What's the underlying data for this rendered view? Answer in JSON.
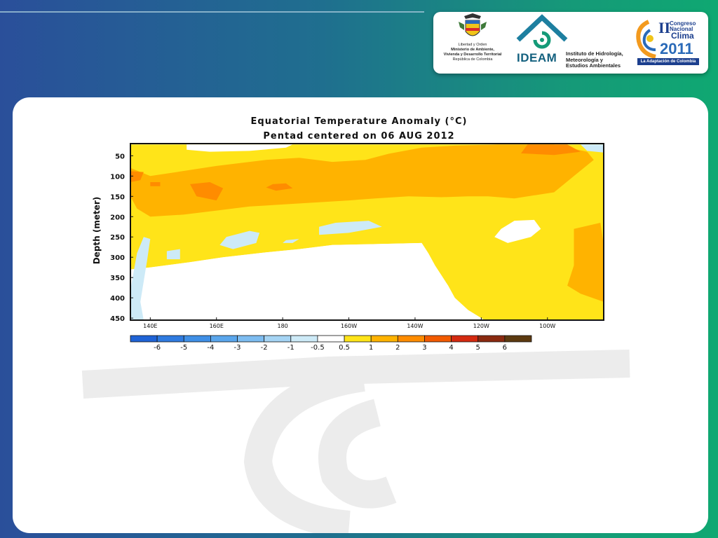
{
  "header": {
    "ministerio": {
      "lines": [
        "Libertad y Orden",
        "Ministerio de Ambiente,",
        "Vivienda y Desarrollo Territorial",
        "República de Colombia"
      ],
      "icon": "colombia-coat-of-arms-icon"
    },
    "ideam": {
      "name": "IDEAM",
      "subtitle_lines": [
        "Instituto de Hidrología,",
        "Meteorología y",
        "Estudios Ambientales"
      ],
      "icon": "ideam-house-icon"
    },
    "congreso": {
      "line1": "II",
      "line2": "Congreso",
      "line3": "Nacional",
      "line4": "Clima",
      "year": "2011",
      "tagline": "La Adaptación de Colombia"
    }
  },
  "chart_data": {
    "type": "heatmap",
    "title": "Equatorial Temperature Anomaly (°C)",
    "subtitle": "Pentad centered on 06 AUG 2012",
    "ylabel": "Depth (meter)",
    "xlabel": "",
    "x_ticks": [
      {
        "label": "140E",
        "lon": 140
      },
      {
        "label": "160E",
        "lon": 160
      },
      {
        "label": "180",
        "lon": 180
      },
      {
        "label": "160W",
        "lon": 200
      },
      {
        "label": "140W",
        "lon": 220
      },
      {
        "label": "120W",
        "lon": 240
      },
      {
        "label": "100W",
        "lon": 260
      }
    ],
    "xlim": [
      134,
      277
    ],
    "y_ticks": [
      50,
      100,
      150,
      200,
      250,
      300,
      350,
      400,
      450
    ],
    "ylim": [
      20,
      455
    ],
    "y_inverted": true,
    "colorbar": {
      "labels": [
        "-6",
        "-5",
        "-4",
        "-3",
        "-2",
        "-1",
        "-0.5",
        "0.5",
        "1",
        "2",
        "3",
        "4",
        "5",
        "6"
      ],
      "colors": [
        "#1f63d6",
        "#2f7be0",
        "#3f8fe6",
        "#5aa6ec",
        "#7dbcf0",
        "#a5d4f4",
        "#cdeaf7",
        "#ffffff",
        "#ffe419",
        "#ffb300",
        "#ff8c00",
        "#f25a00",
        "#d42a10",
        "#8a2a10",
        "#5c3a10"
      ]
    },
    "regions": [
      {
        "level": "1",
        "color": "#ffe419",
        "points": [
          [
            134,
            22
          ],
          [
            277,
            22
          ],
          [
            277,
            455
          ],
          [
            241,
            455
          ],
          [
            236,
            430
          ],
          [
            232,
            400
          ],
          [
            230,
            370
          ],
          [
            228,
            345
          ],
          [
            226,
            320
          ],
          [
            224,
            290
          ],
          [
            222,
            265
          ],
          [
            205,
            268
          ],
          [
            195,
            270
          ],
          [
            185,
            280
          ],
          [
            175,
            288
          ],
          [
            162,
            300
          ],
          [
            152,
            312
          ],
          [
            140,
            325
          ],
          [
            134,
            330
          ]
        ]
      },
      {
        "level": "2",
        "color": "#ffb300",
        "points": [
          [
            134,
            80
          ],
          [
            140,
            100
          ],
          [
            148,
            90
          ],
          [
            160,
            75
          ],
          [
            175,
            60
          ],
          [
            185,
            55
          ],
          [
            195,
            65
          ],
          [
            205,
            60
          ],
          [
            212,
            45
          ],
          [
            222,
            30
          ],
          [
            232,
            25
          ],
          [
            245,
            22
          ],
          [
            262,
            22
          ],
          [
            272,
            40
          ],
          [
            274,
            60
          ],
          [
            268,
            100
          ],
          [
            262,
            140
          ],
          [
            250,
            155
          ],
          [
            242,
            150
          ],
          [
            236,
            150
          ],
          [
            228,
            152
          ],
          [
            218,
            150
          ],
          [
            208,
            155
          ],
          [
            200,
            160
          ],
          [
            190,
            165
          ],
          [
            180,
            170
          ],
          [
            170,
            175
          ],
          [
            160,
            185
          ],
          [
            150,
            195
          ],
          [
            140,
            200
          ],
          [
            136,
            180
          ],
          [
            134,
            150
          ]
        ]
      },
      {
        "level": "2",
        "color": "#ffb300",
        "points": [
          [
            268,
            230
          ],
          [
            276,
            215
          ],
          [
            277,
            270
          ],
          [
            277,
            410
          ],
          [
            270,
            390
          ],
          [
            266,
            370
          ],
          [
            268,
            320
          ]
        ]
      },
      {
        "level": "3",
        "color": "#ff8c00",
        "points": [
          [
            254,
            22
          ],
          [
            266,
            22
          ],
          [
            270,
            40
          ],
          [
            262,
            48
          ],
          [
            252,
            44
          ]
        ]
      },
      {
        "level": "3",
        "color": "#ff8c00",
        "points": [
          [
            152,
            120
          ],
          [
            158,
            115
          ],
          [
            162,
            130
          ],
          [
            160,
            160
          ],
          [
            154,
            150
          ]
        ]
      },
      {
        "level": "3",
        "color": "#ff8c00",
        "points": [
          [
            177,
            120
          ],
          [
            181,
            118
          ],
          [
            183,
            130
          ],
          [
            178,
            136
          ],
          [
            175,
            128
          ]
        ]
      },
      {
        "level": "3",
        "color": "#ff8c00",
        "points": [
          [
            134,
            88
          ],
          [
            138,
            90
          ],
          [
            137,
            110
          ],
          [
            134,
            115
          ]
        ]
      },
      {
        "level": "3",
        "color": "#ff8c00",
        "points": [
          [
            140,
            115
          ],
          [
            143,
            115
          ],
          [
            143,
            125
          ],
          [
            140,
            125
          ]
        ]
      },
      {
        "level": "0",
        "color": "#ffffff",
        "points": [
          [
            151,
            22
          ],
          [
            183,
            22
          ],
          [
            181,
            30
          ],
          [
            170,
            38
          ],
          [
            158,
            40
          ],
          [
            151,
            35
          ]
        ]
      },
      {
        "level": "0",
        "color": "#ffffff",
        "points": [
          [
            134,
            330
          ],
          [
            140,
            325
          ],
          [
            152,
            312
          ],
          [
            162,
            300
          ],
          [
            175,
            288
          ],
          [
            185,
            280
          ],
          [
            195,
            270
          ],
          [
            205,
            268
          ],
          [
            222,
            265
          ],
          [
            224,
            290
          ],
          [
            226,
            320
          ],
          [
            228,
            345
          ],
          [
            230,
            370
          ],
          [
            232,
            400
          ],
          [
            236,
            430
          ],
          [
            241,
            455
          ],
          [
            134,
            455
          ]
        ]
      },
      {
        "level": "0",
        "color": "#ffffff",
        "points": [
          [
            246,
            230
          ],
          [
            250,
            210
          ],
          [
            256,
            208
          ],
          [
            258,
            230
          ],
          [
            255,
            250
          ],
          [
            248,
            265
          ],
          [
            244,
            250
          ]
        ]
      },
      {
        "level": "-0.5",
        "color": "#cdeaf7",
        "points": [
          [
            136,
            290
          ],
          [
            138,
            250
          ],
          [
            140,
            255
          ],
          [
            139,
            310
          ],
          [
            138,
            360
          ],
          [
            137,
            410
          ],
          [
            138,
            455
          ],
          [
            134,
            455
          ],
          [
            134,
            380
          ]
        ]
      },
      {
        "level": "-0.5",
        "color": "#cdeaf7",
        "points": [
          [
            163,
            250
          ],
          [
            170,
            235
          ],
          [
            173,
            240
          ],
          [
            172,
            265
          ],
          [
            165,
            280
          ],
          [
            161,
            270
          ]
        ]
      },
      {
        "level": "-0.5",
        "color": "#cdeaf7",
        "points": [
          [
            145,
            285
          ],
          [
            149,
            280
          ],
          [
            149,
            305
          ],
          [
            145,
            305
          ]
        ]
      },
      {
        "level": "-0.5",
        "color": "#cdeaf7",
        "points": [
          [
            191,
            225
          ],
          [
            196,
            215
          ],
          [
            206,
            210
          ],
          [
            210,
            225
          ],
          [
            200,
            240
          ],
          [
            191,
            245
          ]
        ]
      },
      {
        "level": "-0.5",
        "color": "#cdeaf7",
        "points": [
          [
            181,
            258
          ],
          [
            185,
            255
          ],
          [
            183,
            265
          ],
          [
            180,
            265
          ]
        ]
      },
      {
        "level": "-0.5",
        "color": "#cdeaf7",
        "points": [
          [
            270,
            22
          ],
          [
            277,
            22
          ],
          [
            277,
            42
          ],
          [
            272,
            38
          ]
        ]
      }
    ]
  }
}
